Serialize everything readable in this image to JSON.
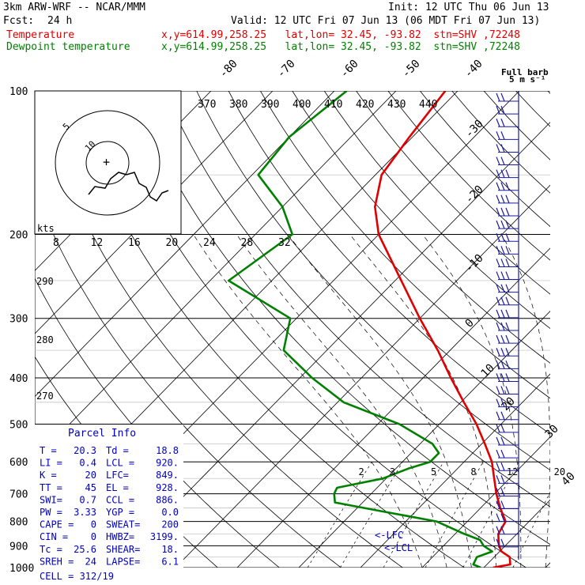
{
  "header": {
    "model": "3km ARW-WRF -- NCAR/MMM",
    "init": "Init: 12 UTC Thu 06 Jun 13",
    "fcst_label": "Fcst:",
    "fcst_value": "24 h",
    "valid": "Valid: 12 UTC Fri 07 Jun 13 (06 MDT Fri 07 Jun 13)",
    "lines": [
      {
        "name": "Temperature",
        "info": "x,y=614.99,258.25   lat,lon= 32.45, -93.82  stn=SHV ,72248",
        "color": "#e00000"
      },
      {
        "name": "Dewpoint temperature",
        "info": "x,y=614.99,258.25   lat,lon= 32.45, -93.82  stn=SHV ,72248",
        "color": "#008000"
      }
    ]
  },
  "barb_legend": {
    "title": "Full barb",
    "units": "5 m s⁻¹"
  },
  "hodograph": {
    "units_label": "kts",
    "ring_labels": [
      "5",
      "10"
    ]
  },
  "chart_data": {
    "type": "line",
    "title": "",
    "ylabel": "",
    "xlabel": "",
    "y_axis": {
      "scale": "log",
      "unit": "hPa",
      "range": [
        1000,
        100
      ],
      "ticks": [
        100,
        200,
        300,
        400,
        500,
        600,
        700,
        800,
        900,
        1000
      ]
    },
    "isotherm_labels": [
      "-80",
      "-70",
      "-60",
      "-50",
      "-40",
      "-30",
      "-20",
      "-10",
      "0",
      "10",
      "20",
      "30",
      "40"
    ],
    "theta_labels": [
      "370",
      "380",
      "390",
      "400",
      "410",
      "420",
      "430",
      "440"
    ],
    "lower_theta_labels": [
      "290",
      "280",
      "270"
    ],
    "mixing_ratio_labels": [
      "2",
      "3",
      "5",
      "8",
      "12",
      "20"
    ],
    "speed_labels": [
      "8",
      "12",
      "16",
      "20",
      "24",
      "28",
      "32"
    ],
    "lfc_label": "LFC",
    "lcl_label": "LCL",
    "series": [
      {
        "name": "Temperature",
        "color": "#e00000",
        "pressure": [
          1000,
          985,
          950,
          925,
          900,
          875,
          850,
          800,
          750,
          700,
          650,
          600,
          550,
          500,
          450,
          400,
          350,
          300,
          250,
          200,
          175,
          150,
          125,
          100
        ],
        "values": [
          21.5,
          23.8,
          22.5,
          20.3,
          19.0,
          18.0,
          17.0,
          16.2,
          13.2,
          10.3,
          7.5,
          4.5,
          0.5,
          -4.0,
          -9.5,
          -15.5,
          -22.0,
          -30.0,
          -39.0,
          -50.0,
          -55.0,
          -59.0,
          -60.5,
          -62.0
        ]
      },
      {
        "name": "Dewpoint temperature",
        "color": "#008000",
        "pressure": [
          1000,
          985,
          950,
          925,
          900,
          875,
          850,
          800,
          760,
          730,
          700,
          680,
          650,
          620,
          600,
          575,
          550,
          500,
          450,
          400,
          350,
          300,
          250,
          200,
          175,
          150,
          125,
          100
        ],
        "values": [
          19.5,
          17.8,
          17.2,
          18.8,
          16.5,
          15.0,
          11.5,
          5.0,
          -6.0,
          -14.5,
          -16.0,
          -16.5,
          -10.5,
          -8.0,
          -5.5,
          -5.5,
          -8.0,
          -16.5,
          -29.0,
          -38.0,
          -47.0,
          -51.0,
          -67.0,
          -64.0,
          -70.0,
          -79.0,
          -80.0,
          -78.0
        ]
      }
    ],
    "wind_barbs_count": 36
  },
  "parcel_info": {
    "title": "Parcel Info",
    "rows": [
      [
        "T  =",
        "20.3",
        "Td =",
        "18.8"
      ],
      [
        "LI =",
        "0.4",
        "LCL =",
        "920."
      ],
      [
        "K  =",
        "20",
        "LFC=",
        "849."
      ],
      [
        "TT =",
        "45",
        "EL  =",
        "928."
      ],
      [
        "SWI=",
        "0.7",
        "CCL =",
        "886."
      ],
      [
        "PW =",
        "3.33",
        "YGP =",
        "0.0"
      ],
      [
        "CAPE =",
        "0",
        "SWEAT=",
        "200"
      ],
      [
        "CIN  =",
        "0",
        "HWBZ=",
        "3199."
      ],
      [
        "Tc   =",
        "25.6",
        "SHEAR=",
        "18."
      ],
      [
        "SREH =",
        "24",
        "LAPSE=",
        "6.1"
      ]
    ],
    "cell": "CELL = 312/19"
  }
}
